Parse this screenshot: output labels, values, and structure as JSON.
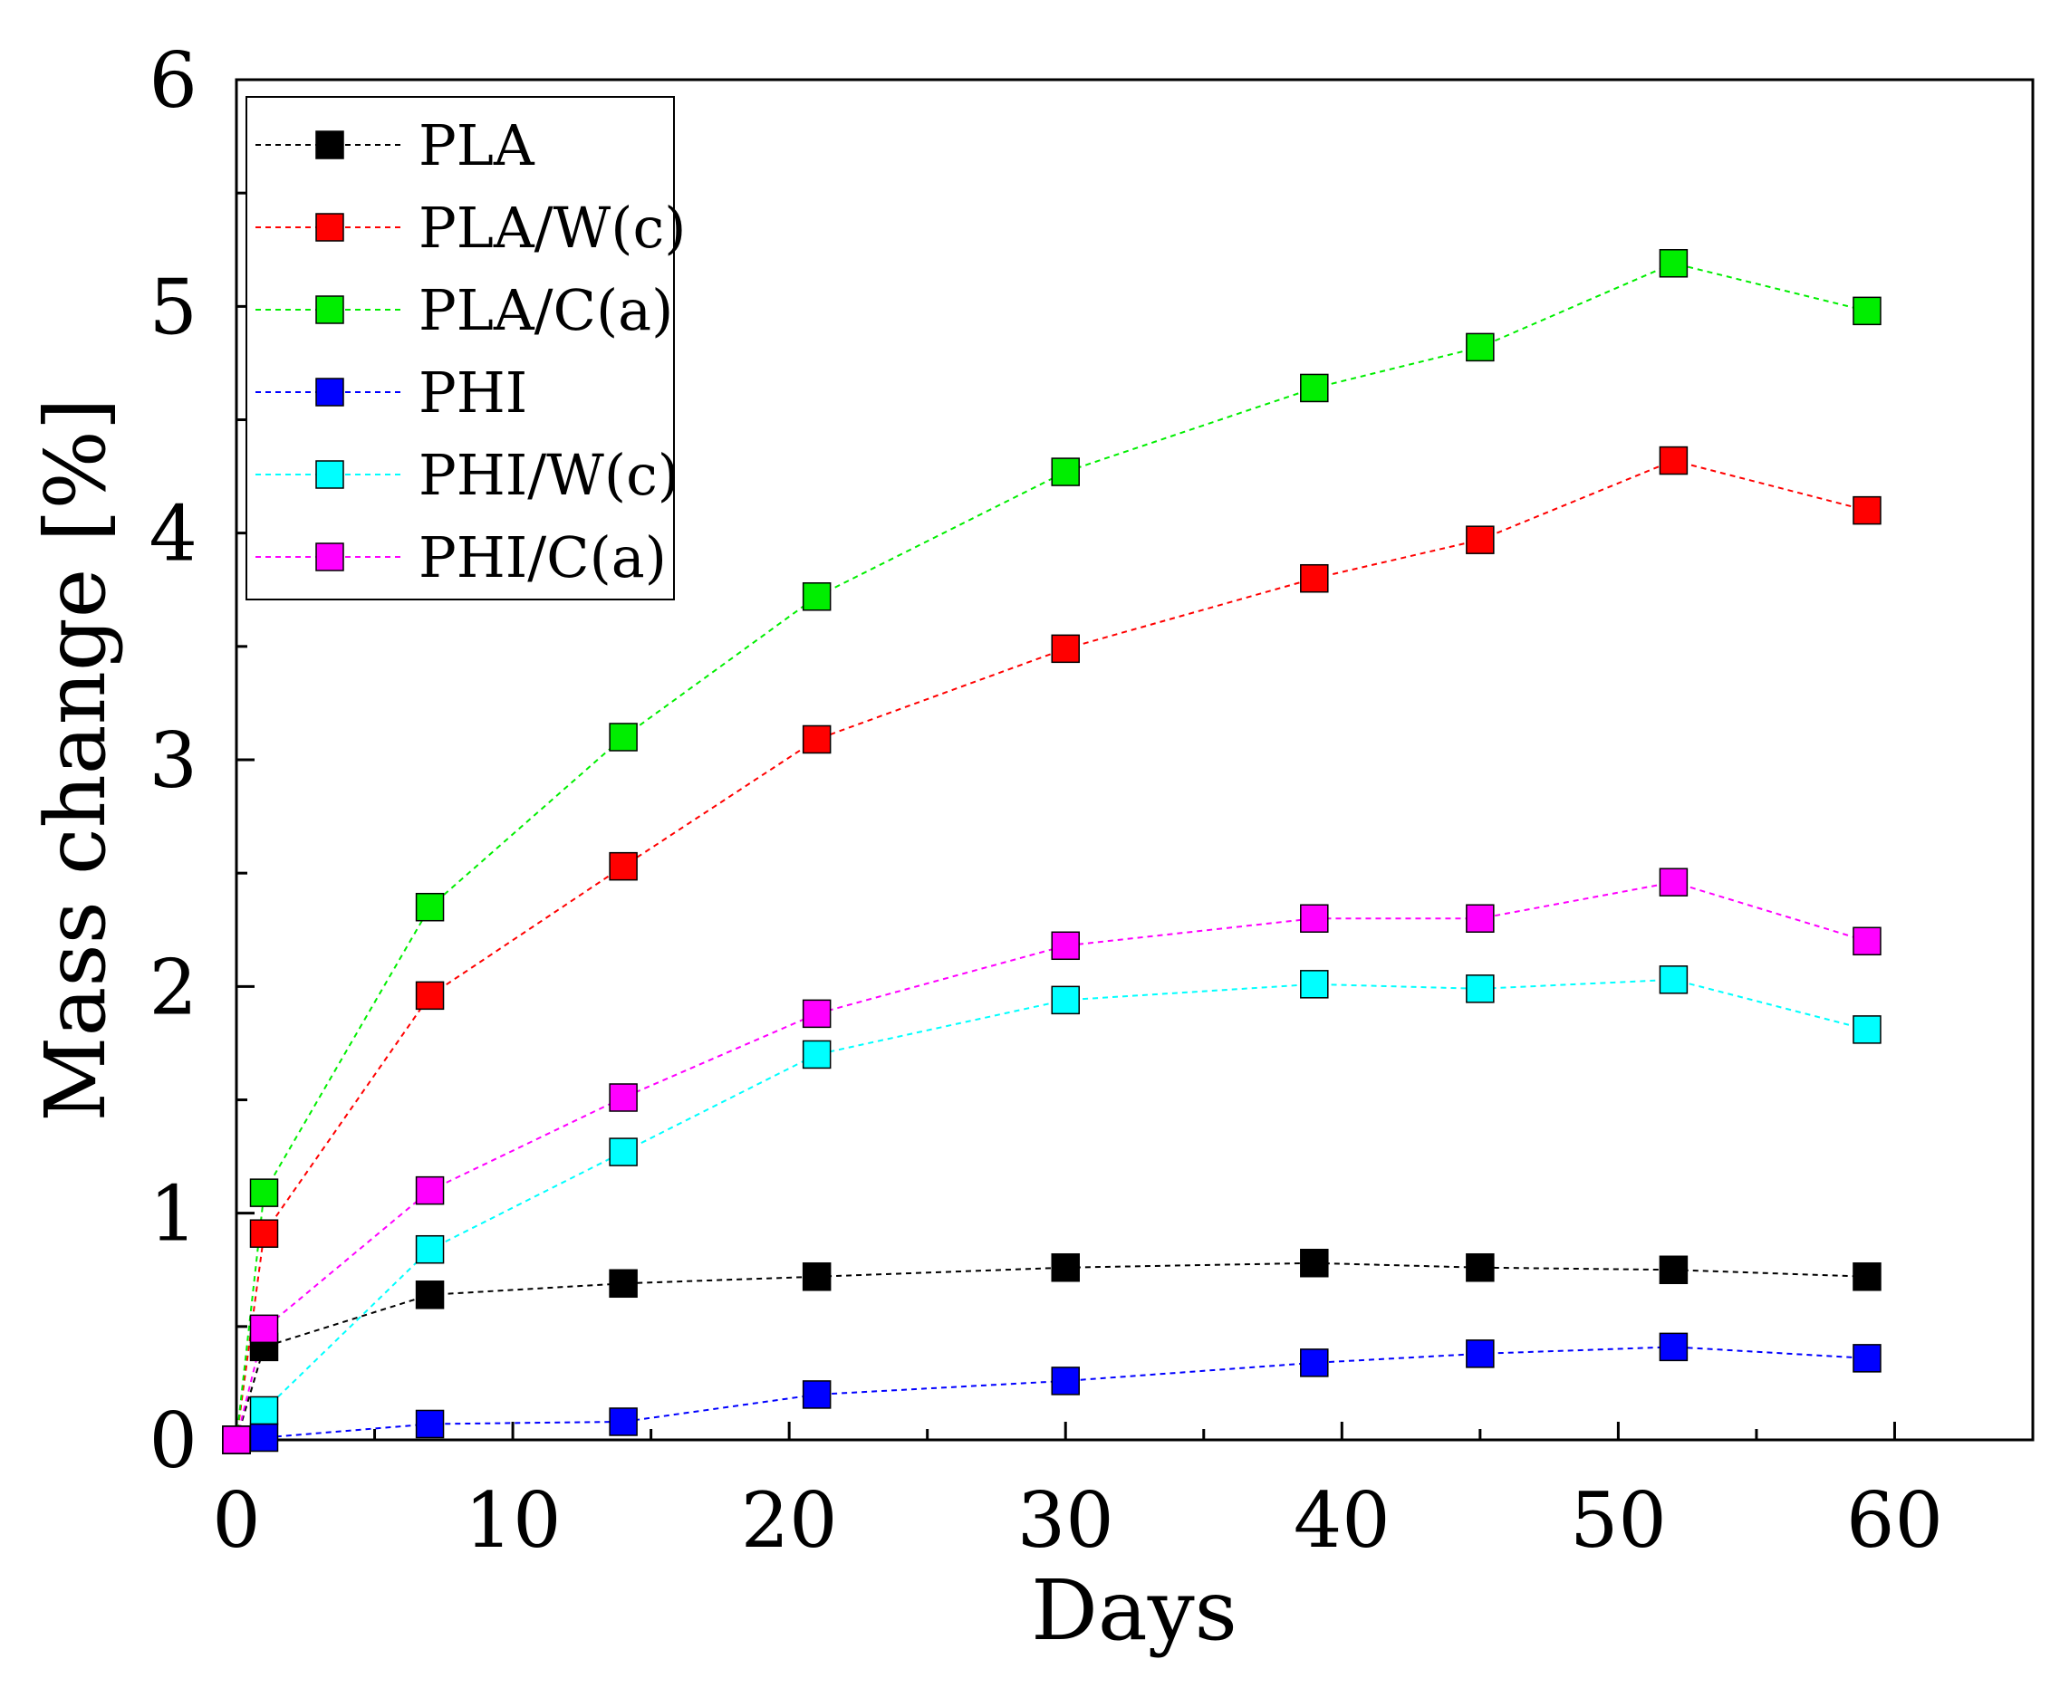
{
  "chart_data": {
    "type": "line",
    "title": "",
    "xlabel": "Days",
    "ylabel": "Mass change [%]",
    "xlim": [
      0,
      65
    ],
    "ylim": [
      0,
      6
    ],
    "x_ticks": [
      0,
      10,
      20,
      30,
      40,
      50,
      60
    ],
    "y_ticks": [
      0,
      1,
      2,
      3,
      4,
      5,
      6
    ],
    "grid": false,
    "legend_position": "top-left",
    "x": [
      0,
      1,
      7,
      14,
      21,
      30,
      39,
      45,
      52,
      59
    ],
    "series": [
      {
        "name": "PLA",
        "color": "#000000",
        "marker": "square",
        "line_style": "dashed",
        "values": [
          0,
          0.41,
          0.64,
          0.69,
          0.72,
          0.76,
          0.78,
          0.76,
          0.75,
          0.72
        ]
      },
      {
        "name": "PLA/W(c)",
        "color": "#ff0000",
        "marker": "square",
        "line_style": "dashed",
        "values": [
          0,
          0.91,
          1.96,
          2.53,
          3.09,
          3.49,
          3.8,
          3.97,
          4.32,
          4.1
        ]
      },
      {
        "name": "PLA/C(a)",
        "color": "#00ee00",
        "marker": "square",
        "line_style": "dashed",
        "values": [
          0,
          1.09,
          2.35,
          3.1,
          3.72,
          4.27,
          4.64,
          4.82,
          5.19,
          4.98
        ]
      },
      {
        "name": "PHI",
        "color": "#0000ff",
        "marker": "square",
        "line_style": "dashed",
        "values": [
          0,
          0.01,
          0.07,
          0.08,
          0.2,
          0.26,
          0.34,
          0.38,
          0.41,
          0.36
        ]
      },
      {
        "name": "PHI/W(c)",
        "color": "#00ffff",
        "marker": "square",
        "line_style": "dashed",
        "values": [
          0,
          0.13,
          0.84,
          1.27,
          1.7,
          1.94,
          2.01,
          1.99,
          2.03,
          1.81
        ]
      },
      {
        "name": "PHI/C(a)",
        "color": "#ff00ff",
        "marker": "square",
        "line_style": "dashed",
        "values": [
          0,
          0.49,
          1.1,
          1.51,
          1.88,
          2.18,
          2.3,
          2.3,
          2.46,
          2.2
        ]
      }
    ]
  }
}
